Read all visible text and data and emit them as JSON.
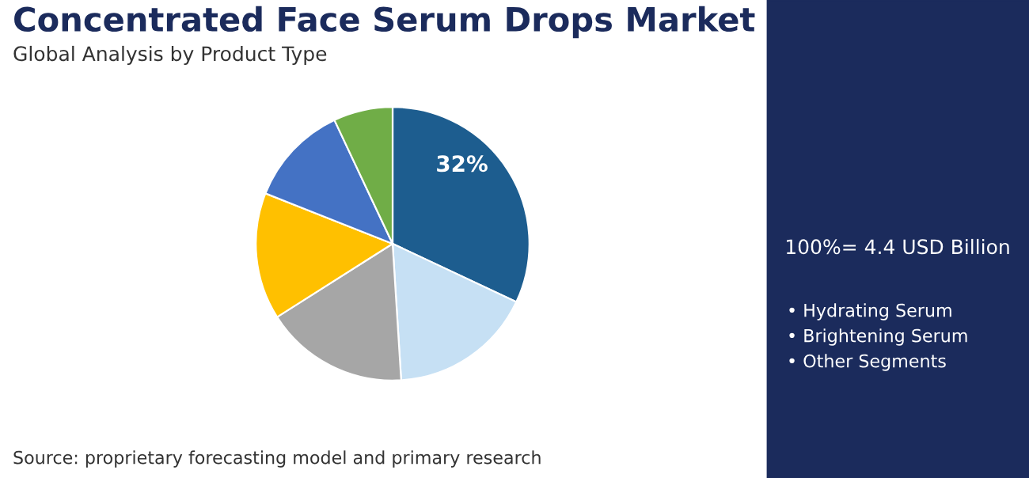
{
  "chart_data": {
    "type": "pie",
    "title": "Concentrated Face Serum Drops Market",
    "subtitle": "Global Analysis by Product Type",
    "categories": [
      null,
      null,
      null,
      null,
      null,
      null
    ],
    "values": [
      32,
      17,
      17,
      15,
      12,
      7
    ],
    "colors": [
      "#1d5d8f",
      "#c6e0f4",
      "#a6a6a6",
      "#ffc000",
      "#4472c4",
      "#70ad47"
    ],
    "value_labels": [
      "32%",
      null,
      null,
      null,
      null,
      null
    ],
    "annotations": [
      "100%= 4.4 USD Billion",
      "• Hydrating Serum",
      "• Brightening Serum",
      "• Other Segments",
      "Source: proprietary forecasting model and primary research"
    ]
  }
}
